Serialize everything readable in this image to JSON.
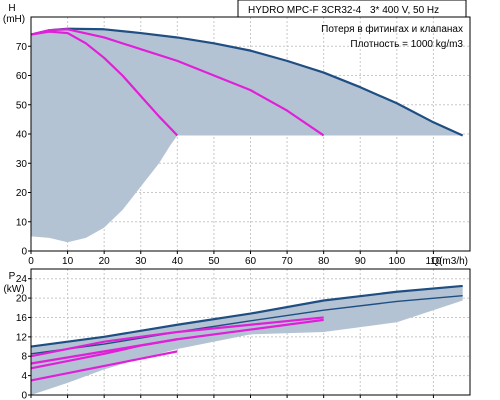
{
  "header": {
    "model": "HYDRO MPC-F 3CR32-4",
    "supply": "3* 400 V, 50 Hz",
    "note1": "Потеря в фитингах и клапанах",
    "note2": "Плотность = 1000 kg/m3"
  },
  "colors": {
    "band": "#b4c3d4",
    "pump_curve": "#1f4e82",
    "duty_curve": "#e020d8",
    "grid": "#c8c8c8"
  },
  "chart_data": [
    {
      "type": "line",
      "name": "head",
      "ylabel": "H",
      "yunit": "(mH)",
      "xlabel": "Q(m3/h)",
      "xlim": [
        0,
        120
      ],
      "ylim": [
        0,
        80
      ],
      "xticks": [
        0,
        10,
        20,
        30,
        40,
        50,
        60,
        70,
        80,
        90,
        100,
        110
      ],
      "yticks": [
        0,
        10,
        20,
        30,
        40,
        50,
        60,
        70
      ],
      "band": {
        "top": [
          [
            0,
            74
          ],
          [
            5,
            75.5
          ],
          [
            10,
            76
          ],
          [
            20,
            75.8
          ],
          [
            30,
            74.5
          ],
          [
            40,
            73
          ],
          [
            50,
            71
          ],
          [
            60,
            68.5
          ],
          [
            70,
            65
          ],
          [
            80,
            61
          ],
          [
            90,
            56
          ],
          [
            100,
            50.5
          ],
          [
            110,
            44
          ],
          [
            118,
            39.5
          ]
        ],
        "bottom": [
          [
            118,
            39.5
          ],
          [
            40,
            39.5
          ],
          [
            38,
            36
          ],
          [
            35,
            30
          ],
          [
            30,
            22
          ],
          [
            25,
            14
          ],
          [
            20,
            8
          ],
          [
            15,
            4.5
          ],
          [
            10,
            3
          ],
          [
            5,
            4.5
          ],
          [
            0,
            5
          ]
        ]
      },
      "series": [
        {
          "role": "max-curve",
          "points": [
            [
              0,
              74
            ],
            [
              5,
              75.5
            ],
            [
              10,
              76
            ],
            [
              20,
              75.8
            ],
            [
              30,
              74.5
            ],
            [
              40,
              73
            ],
            [
              50,
              71
            ],
            [
              60,
              68.5
            ],
            [
              70,
              65
            ],
            [
              80,
              61
            ],
            [
              90,
              56
            ],
            [
              100,
              50.5
            ],
            [
              110,
              44
            ],
            [
              118,
              39.5
            ]
          ]
        },
        {
          "role": "duty-1",
          "points": [
            [
              0,
              74
            ],
            [
              5,
              75
            ],
            [
              10,
              74.5
            ],
            [
              15,
              71
            ],
            [
              20,
              66
            ],
            [
              25,
              60
            ],
            [
              30,
              53
            ],
            [
              35,
              46
            ],
            [
              40,
              39.5
            ]
          ]
        },
        {
          "role": "duty-2",
          "points": [
            [
              0,
              74
            ],
            [
              5,
              75.5
            ],
            [
              10,
              75.8
            ],
            [
              20,
              73
            ],
            [
              30,
              69
            ],
            [
              40,
              65
            ],
            [
              50,
              60
            ],
            [
              60,
              55
            ],
            [
              70,
              48
            ],
            [
              80,
              39.5
            ]
          ]
        }
      ]
    },
    {
      "type": "line",
      "name": "power",
      "ylabel": "P",
      "yunit": "(kW)",
      "xlim": [
        0,
        120
      ],
      "ylim": [
        0,
        26
      ],
      "xticks": [
        0,
        10,
        20,
        30,
        40,
        50,
        60,
        70,
        80,
        90,
        100,
        110
      ],
      "yticks": [
        0,
        4,
        8,
        12,
        16,
        20,
        24
      ],
      "band": {
        "top": [
          [
            0,
            10
          ],
          [
            20,
            12
          ],
          [
            40,
            14.5
          ],
          [
            60,
            16.8
          ],
          [
            80,
            19.5
          ],
          [
            100,
            21.3
          ],
          [
            118,
            22.5
          ]
        ],
        "bottom": [
          [
            118,
            19.5
          ],
          [
            100,
            15
          ],
          [
            80,
            13
          ],
          [
            60,
            12.5
          ],
          [
            40,
            9.5
          ],
          [
            30,
            7.5
          ],
          [
            20,
            5.3
          ],
          [
            10,
            2.5
          ],
          [
            0,
            0
          ]
        ]
      },
      "series": [
        {
          "role": "p1-max",
          "points": [
            [
              0,
              10
            ],
            [
              20,
              12
            ],
            [
              40,
              14.5
            ],
            [
              60,
              16.8
            ],
            [
              80,
              19.5
            ],
            [
              100,
              21.3
            ],
            [
              118,
              22.5
            ]
          ]
        },
        {
          "role": "p2-max",
          "points": [
            [
              0,
              8.5
            ],
            [
              20,
              10.5
            ],
            [
              40,
              13
            ],
            [
              60,
              15.3
            ],
            [
              80,
              17.5
            ],
            [
              100,
              19.3
            ],
            [
              118,
              20.5
            ]
          ]
        },
        {
          "role": "duty-1-p1",
          "points": [
            [
              0,
              3
            ],
            [
              10,
              4.5
            ],
            [
              20,
              6
            ],
            [
              30,
              7.5
            ],
            [
              40,
              9
            ]
          ]
        },
        {
          "role": "duty-1-p2",
          "points": [
            [
              0,
              5.5
            ],
            [
              10,
              7
            ],
            [
              20,
              8.5
            ],
            [
              30,
              10.2
            ],
            [
              40,
              11.5
            ]
          ]
        },
        {
          "role": "duty-2-p1",
          "points": [
            [
              0,
              6.5
            ],
            [
              20,
              9
            ],
            [
              40,
              11.5
            ],
            [
              60,
              13.5
            ],
            [
              80,
              15.5
            ]
          ]
        },
        {
          "role": "duty-2-p2",
          "points": [
            [
              0,
              8
            ],
            [
              20,
              11
            ],
            [
              40,
              13
            ],
            [
              60,
              14.5
            ],
            [
              80,
              16
            ]
          ]
        }
      ]
    }
  ]
}
